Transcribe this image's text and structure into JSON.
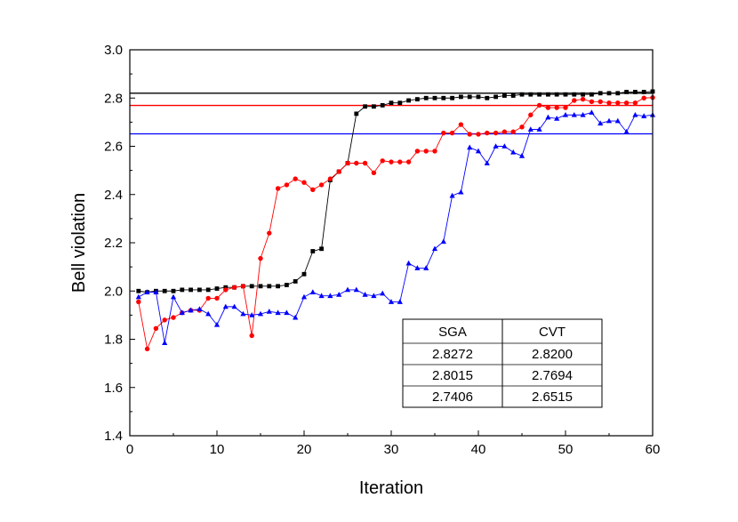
{
  "chart_data": {
    "type": "line",
    "title": "",
    "xlabel": "Iteration",
    "ylabel": "Bell violation",
    "xlim": [
      0,
      60
    ],
    "ylim": [
      1.4,
      3.0
    ],
    "xticks": [
      0,
      10,
      20,
      30,
      40,
      50,
      60
    ],
    "yticks": [
      1.4,
      1.6,
      1.8,
      2.0,
      2.2,
      2.4,
      2.6,
      2.8,
      3.0
    ],
    "xtick_labels": [
      "0",
      "10",
      "20",
      "30",
      "40",
      "50",
      "60"
    ],
    "ytick_labels": [
      "1.4",
      "1.6",
      "1.8",
      "2.0",
      "2.2",
      "2.4",
      "2.6",
      "2.8",
      "3.0"
    ],
    "series": [
      {
        "name": "black",
        "color": "#000000",
        "marker": "square",
        "x": [
          1,
          2,
          3,
          4,
          5,
          6,
          7,
          8,
          9,
          10,
          11,
          12,
          13,
          14,
          15,
          16,
          17,
          18,
          19,
          20,
          21,
          22,
          23,
          24,
          25,
          26,
          27,
          28,
          29,
          30,
          31,
          32,
          33,
          34,
          35,
          36,
          37,
          38,
          39,
          40,
          41,
          42,
          43,
          44,
          45,
          46,
          47,
          48,
          49,
          50,
          51,
          52,
          53,
          54,
          55,
          56,
          57,
          58,
          59,
          60
        ],
        "values": [
          2.0,
          1.995,
          2.0,
          2.0,
          2.0,
          2.005,
          2.005,
          2.005,
          2.005,
          2.01,
          2.015,
          2.015,
          2.02,
          2.02,
          2.02,
          2.02,
          2.02,
          2.025,
          2.04,
          2.07,
          2.165,
          2.175,
          2.46,
          2.495,
          2.53,
          2.735,
          2.765,
          2.765,
          2.77,
          2.78,
          2.78,
          2.79,
          2.795,
          2.8,
          2.8,
          2.8,
          2.8,
          2.805,
          2.805,
          2.805,
          2.8,
          2.805,
          2.81,
          2.81,
          2.815,
          2.815,
          2.815,
          2.815,
          2.815,
          2.815,
          2.815,
          2.815,
          2.815,
          2.82,
          2.82,
          2.82,
          2.825,
          2.825,
          2.825,
          2.827
        ]
      },
      {
        "name": "red",
        "color": "#ff0000",
        "marker": "circle",
        "x": [
          1,
          2,
          3,
          4,
          5,
          6,
          7,
          8,
          9,
          10,
          11,
          12,
          13,
          14,
          15,
          16,
          17,
          18,
          19,
          20,
          21,
          22,
          23,
          24,
          25,
          26,
          27,
          28,
          29,
          30,
          31,
          32,
          33,
          34,
          35,
          36,
          37,
          38,
          39,
          40,
          41,
          42,
          43,
          44,
          45,
          46,
          47,
          48,
          49,
          50,
          51,
          52,
          53,
          54,
          55,
          56,
          57,
          58,
          59,
          60
        ],
        "values": [
          1.955,
          1.76,
          1.845,
          1.88,
          1.89,
          1.91,
          1.92,
          1.92,
          1.97,
          1.97,
          2.005,
          2.015,
          2.02,
          1.815,
          2.135,
          2.24,
          2.425,
          2.44,
          2.465,
          2.45,
          2.42,
          2.44,
          2.465,
          2.495,
          2.53,
          2.53,
          2.53,
          2.49,
          2.54,
          2.535,
          2.535,
          2.535,
          2.58,
          2.58,
          2.58,
          2.655,
          2.655,
          2.69,
          2.65,
          2.65,
          2.655,
          2.655,
          2.66,
          2.66,
          2.68,
          2.73,
          2.77,
          2.76,
          2.76,
          2.76,
          2.79,
          2.795,
          2.785,
          2.785,
          2.78,
          2.78,
          2.78,
          2.78,
          2.8,
          2.802
        ]
      },
      {
        "name": "blue",
        "color": "#0000ff",
        "marker": "triangle",
        "x": [
          1,
          2,
          3,
          4,
          5,
          6,
          7,
          8,
          9,
          10,
          11,
          12,
          13,
          14,
          15,
          16,
          17,
          18,
          19,
          20,
          21,
          22,
          23,
          24,
          25,
          26,
          27,
          28,
          29,
          30,
          31,
          32,
          33,
          34,
          35,
          36,
          37,
          38,
          39,
          40,
          41,
          42,
          43,
          44,
          45,
          46,
          47,
          48,
          49,
          50,
          51,
          52,
          53,
          54,
          55,
          56,
          57,
          58,
          59,
          60
        ],
        "values": [
          1.975,
          1.995,
          1.995,
          1.785,
          1.975,
          1.91,
          1.92,
          1.925,
          1.905,
          1.86,
          1.935,
          1.935,
          1.905,
          1.9,
          1.905,
          1.915,
          1.91,
          1.91,
          1.89,
          1.975,
          1.995,
          1.98,
          1.98,
          1.985,
          2.005,
          2.005,
          1.985,
          1.98,
          1.99,
          1.955,
          1.955,
          2.115,
          2.095,
          2.095,
          2.175,
          2.205,
          2.395,
          2.41,
          2.595,
          2.58,
          2.53,
          2.6,
          2.6,
          2.575,
          2.56,
          2.67,
          2.67,
          2.72,
          2.715,
          2.73,
          2.73,
          2.73,
          2.74,
          2.695,
          2.705,
          2.705,
          2.66,
          2.73,
          2.725,
          2.73
        ]
      }
    ],
    "hlines": [
      {
        "value": 2.82,
        "color": "#000000"
      },
      {
        "value": 2.7694,
        "color": "#ff0000"
      },
      {
        "value": 2.6515,
        "color": "#0000ff"
      }
    ],
    "table": {
      "headers": [
        "SGA",
        "CVT"
      ],
      "rows": [
        [
          "2.8272",
          "2.8200"
        ],
        [
          "2.8015",
          "2.7694"
        ],
        [
          "2.7406",
          "2.6515"
        ]
      ]
    },
    "grid": false,
    "legend": "none"
  }
}
